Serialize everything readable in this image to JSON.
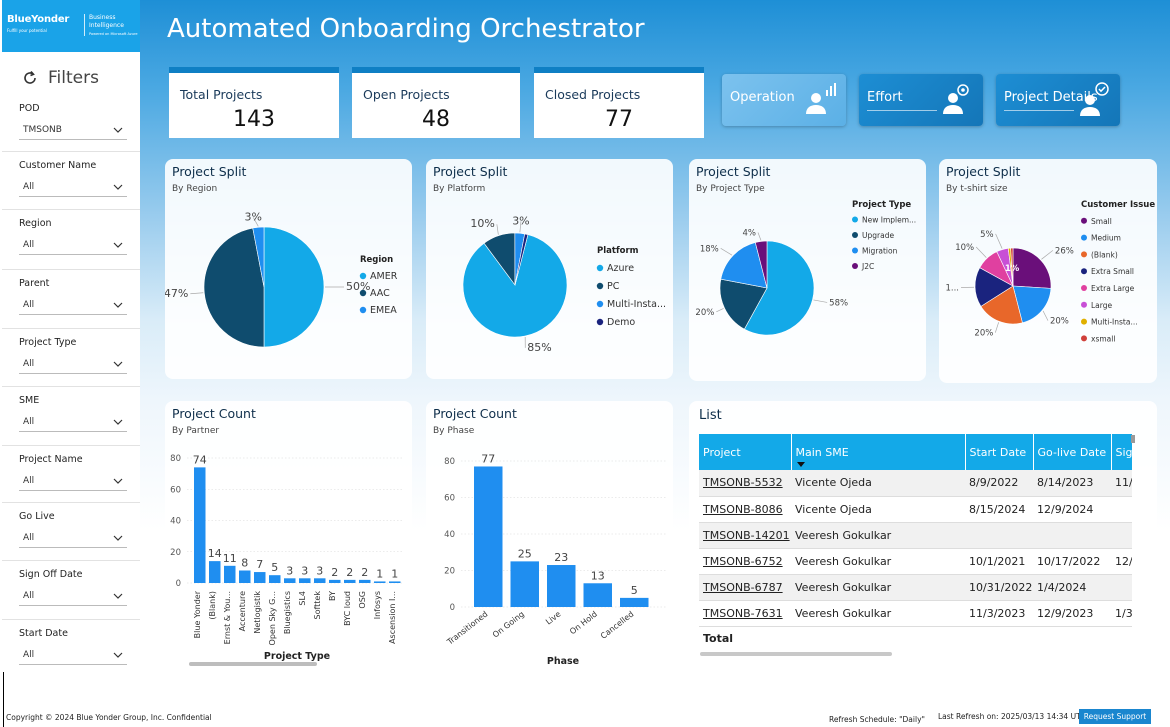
{
  "logo": {
    "brand": "BlueYonder",
    "tagline": "Fulfill your potential",
    "product_line1": "Business",
    "product_line2": "Intelligence",
    "powered": "Powered on Microsoft Azure"
  },
  "sidebar": {
    "title": "Filters",
    "filters": [
      {
        "label": "POD",
        "value": "TMSONB"
      },
      {
        "label": "Customer Name",
        "value": "All"
      },
      {
        "label": "Region",
        "value": "All"
      },
      {
        "label": "Parent",
        "value": "All"
      },
      {
        "label": "Project Type",
        "value": "All"
      },
      {
        "label": "SME",
        "value": "All"
      },
      {
        "label": "Project Name",
        "value": "All"
      },
      {
        "label": "Go Live",
        "value": "All"
      },
      {
        "label": "Sign Off Date",
        "value": "All"
      },
      {
        "label": "Start Date",
        "value": "All"
      }
    ]
  },
  "header": {
    "title": "Automated Onboarding Orchestrator"
  },
  "kpis": [
    {
      "label": "Total Projects",
      "value": "143"
    },
    {
      "label": "Open Projects",
      "value": "48"
    },
    {
      "label": "Closed Projects",
      "value": "77"
    }
  ],
  "nav": [
    {
      "label": "Operation"
    },
    {
      "label": "Effort"
    },
    {
      "label": "Project Details"
    }
  ],
  "colors": {
    "accent": "#13a9e8",
    "dark_blue": "#0f4c6e",
    "mid_blue": "#1f8ef0",
    "navy": "#1a237e",
    "purple": "#6a0f7a",
    "orange": "#e8672a",
    "pink": "#e040a0",
    "yellow": "#e0b000",
    "red": "#d0403a"
  },
  "chart_data": [
    {
      "type": "pie",
      "title": "Project Split",
      "subtitle": "By Region",
      "legend_title": "Region",
      "categories": [
        "AMER",
        "AAC",
        "EMEA"
      ],
      "values": [
        50,
        47,
        3
      ],
      "labels": [
        "50%",
        "47%",
        "3%"
      ],
      "legend": "right"
    },
    {
      "type": "pie",
      "title": "Project Split",
      "subtitle": "By Platform",
      "legend_title": "Platform",
      "categories": [
        "Azure",
        "PC",
        "Multi-Insta...",
        "Demo"
      ],
      "values": [
        85,
        10,
        3,
        1
      ],
      "labels": [
        "85%",
        "10%",
        "3%",
        ""
      ],
      "legend": "right"
    },
    {
      "type": "pie",
      "title": "Project Split",
      "subtitle": "By Project Type",
      "legend_title": "Project Type",
      "categories": [
        "New Implem...",
        "Upgrade",
        "Migration",
        "J2C"
      ],
      "values": [
        58,
        20,
        18,
        4
      ],
      "labels": [
        "58%",
        "20%",
        "18%",
        "4%"
      ],
      "legend": "top-right"
    },
    {
      "type": "pie",
      "title": "Project Split",
      "subtitle": "By t-shirt size",
      "legend_title": "Customer Issue ...",
      "categories": [
        "Small",
        "Medium",
        "(Blank)",
        "Extra Small",
        "Extra Large",
        "Large",
        "Multi-Insta...",
        "xsmall"
      ],
      "values": [
        26,
        20,
        20,
        17,
        10,
        5,
        1,
        1
      ],
      "labels": [
        "26%",
        "20%",
        "20%",
        "1...",
        "10%",
        "5%",
        "1%",
        ""
      ],
      "legend": "right"
    },
    {
      "type": "bar",
      "title": "Project Count",
      "subtitle": "By Partner",
      "xlabel": "Project Type",
      "ylabel": "",
      "categories": [
        "Blue Yonder",
        "(Blank)",
        "Ernst & You...",
        "Accenture",
        "Netlogistik",
        "Open Sky G...",
        "Bluegistics",
        "SL4",
        "Softtek",
        "BY",
        "BYC loud",
        "OSG",
        "Infosys",
        "Ascension I..."
      ],
      "values": [
        74,
        14,
        11,
        8,
        7,
        5,
        3,
        3,
        3,
        2,
        2,
        2,
        1,
        1
      ],
      "yticks": [
        "0",
        "20",
        "40",
        "60",
        "80"
      ],
      "ylim": [
        0,
        80
      ]
    },
    {
      "type": "bar",
      "title": "Project Count",
      "subtitle": "By Phase",
      "xlabel": "Phase",
      "ylabel": "",
      "categories": [
        "Transitioned",
        "On Going",
        "Live",
        "On Hold",
        "Cancelled"
      ],
      "values": [
        77,
        25,
        23,
        13,
        5
      ],
      "yticks": [
        "0",
        "20",
        "40",
        "60",
        "80"
      ],
      "ylim": [
        0,
        80
      ]
    }
  ],
  "list": {
    "title": "List",
    "columns": [
      "Project",
      "Main SME",
      "Start Date",
      "Go-live Date",
      "Sig"
    ],
    "rows": [
      [
        "TMSONB-5532",
        "Vicente Ojeda",
        "8/9/2022",
        "8/14/2023",
        "11/"
      ],
      [
        "TMSONB-8086",
        "Vicente Ojeda",
        "8/15/2024",
        "12/9/2024",
        ""
      ],
      [
        "TMSONB-14201",
        "Veeresh Gokulkar",
        "",
        "",
        ""
      ],
      [
        "TMSONB-6752",
        "Veeresh Gokulkar",
        "10/1/2021",
        "10/17/2022",
        "12/"
      ],
      [
        "TMSONB-6787",
        "Veeresh Gokulkar",
        "10/31/2022",
        "1/4/2024",
        ""
      ],
      [
        "TMSONB-7631",
        "Veeresh Gokulkar",
        "11/3/2023",
        "12/9/2023",
        "1/3"
      ]
    ],
    "total_label": "Total"
  },
  "footer": {
    "copyright": "Copyright © 2024 Blue Yonder Group, Inc. Confidential",
    "refresh_schedule": "Refresh Schedule: \"Daily\"",
    "last_refresh": "Last Refresh on: 2025/03/13 14:34 UTC",
    "support": "Request Support"
  }
}
